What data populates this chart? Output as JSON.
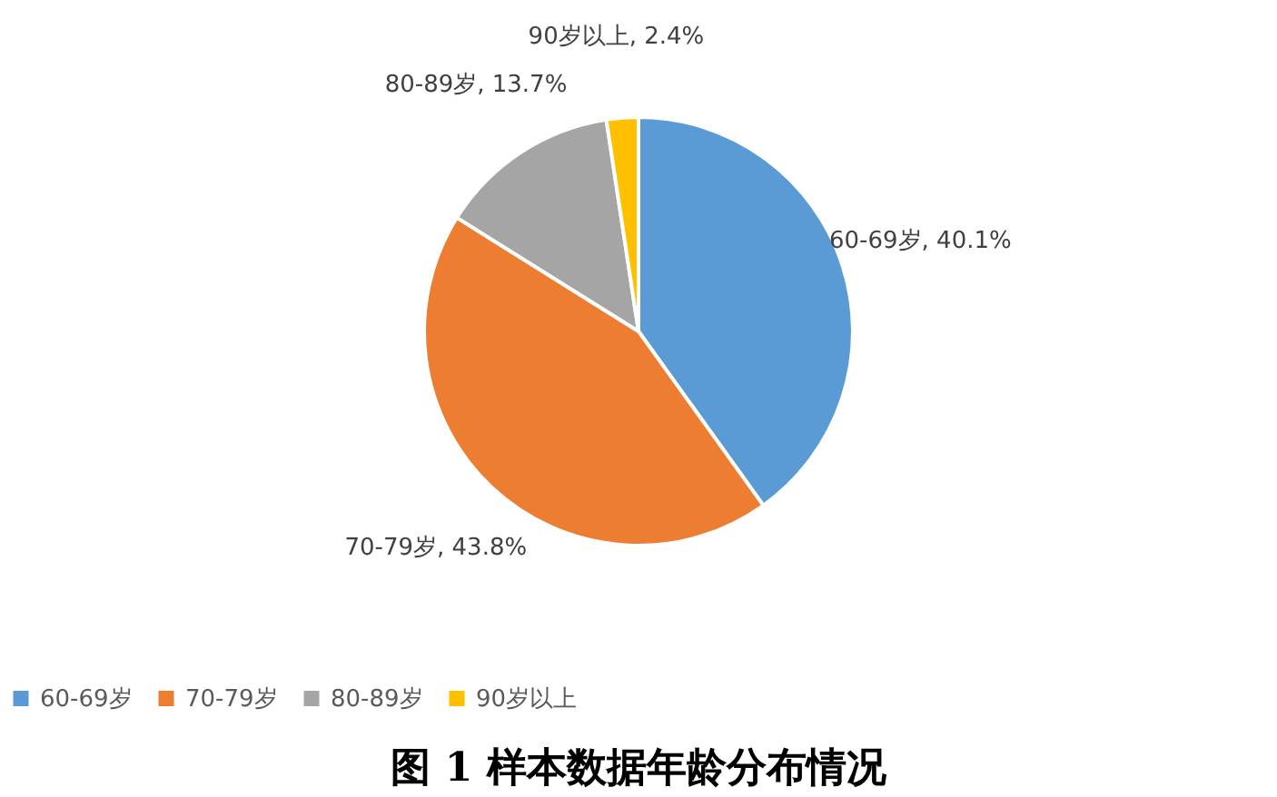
{
  "chart_data": {
    "type": "pie",
    "title": "图 1  样本数据年龄分布情况",
    "categories": [
      "60-69岁",
      "70-79岁",
      "80-89岁",
      "90岁以上"
    ],
    "values": [
      40.1,
      43.8,
      13.7,
      2.4
    ],
    "colors": [
      "#5b9bd5",
      "#ed7d31",
      "#a5a5a5",
      "#ffc000"
    ],
    "value_labels": [
      "60-69岁, 40.1%",
      "70-79岁, 43.8%",
      "80-89岁, 13.7%",
      "90岁以上, 2.4%"
    ],
    "legend": "bottom"
  }
}
